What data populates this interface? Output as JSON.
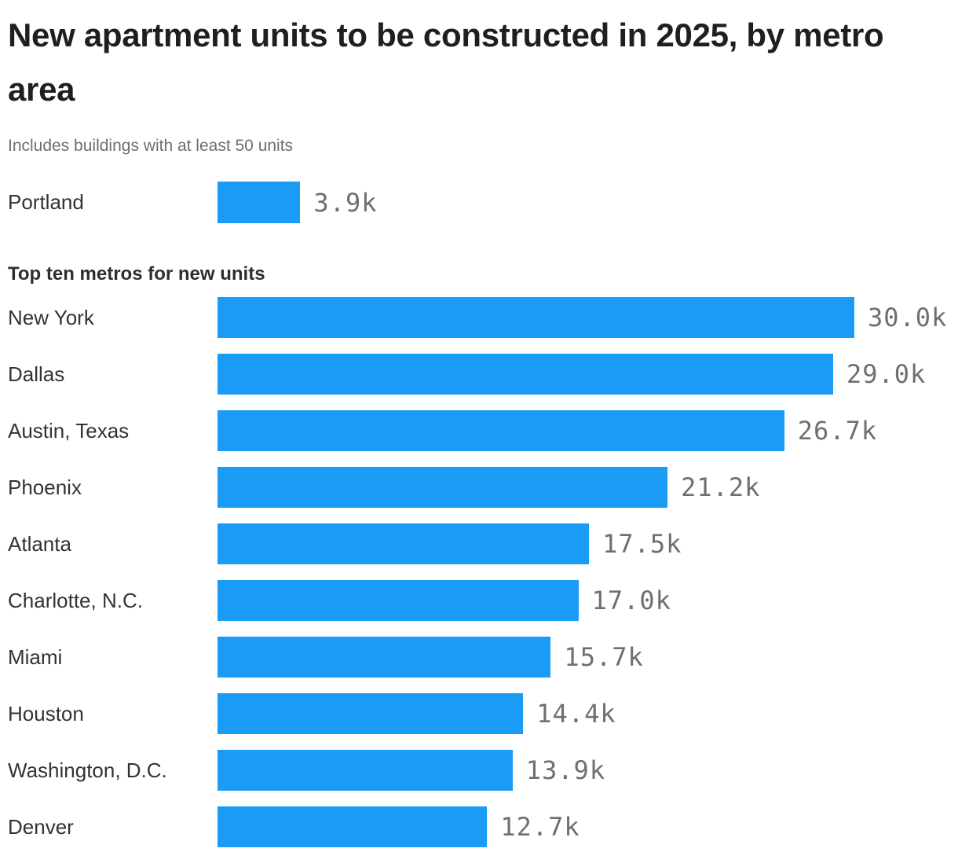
{
  "header": {
    "title": "New apartment units to be constructed in 2025, by metro area",
    "subtitle": "Includes buildings with at least 50 units"
  },
  "chart_data": {
    "type": "bar",
    "orientation": "horizontal",
    "title": "New apartment units to be constructed in 2025, by metro area",
    "subtitle": "Includes buildings with at least 50 units",
    "section_heading": "Top ten metros for new units",
    "unit": "thousands of units",
    "xlim": [
      0,
      30
    ],
    "grid": false,
    "legend": "none",
    "bar_color": "#199bf6",
    "value_label_color": "#6f6f6f",
    "highlight": {
      "label": "Portland",
      "value_k": 3.9,
      "display": "3.9k"
    },
    "categories": [
      "New York",
      "Dallas",
      "Austin, Texas",
      "Phoenix",
      "Atlanta",
      "Charlotte, N.C.",
      "Miami",
      "Houston",
      "Washington, D.C.",
      "Denver"
    ],
    "values": [
      30.0,
      29.0,
      26.7,
      21.2,
      17.5,
      17.0,
      15.7,
      14.4,
      13.9,
      12.7
    ],
    "value_labels": [
      "30.0k",
      "29.0k",
      "26.7k",
      "21.2k",
      "17.5k",
      "17.0k",
      "15.7k",
      "14.4k",
      "13.9k",
      "12.7k"
    ]
  }
}
